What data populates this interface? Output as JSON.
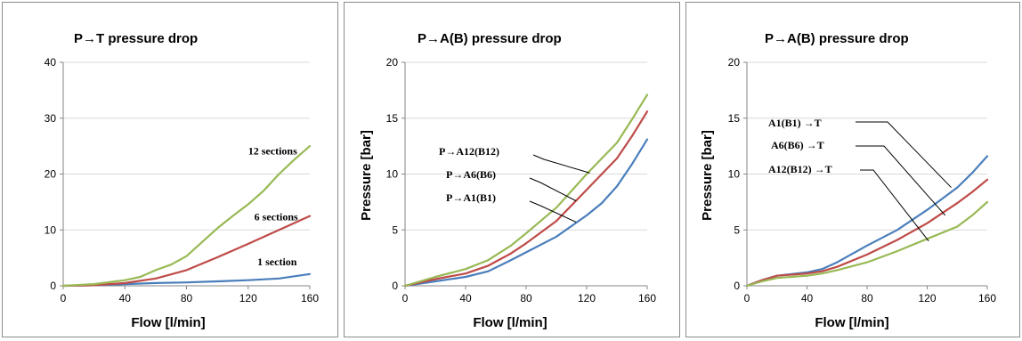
{
  "chart_data": [
    {
      "type": "line",
      "title": "P→T pressure drop",
      "xlabel": "Flow [l/min]",
      "ylabel": "",
      "xlim": [
        0,
        160
      ],
      "ylim": [
        0,
        40
      ],
      "xticks": [
        0,
        40,
        80,
        120,
        160
      ],
      "yticks": [
        0,
        10,
        20,
        30,
        40
      ],
      "grid": "horizontal",
      "series": [
        {
          "name": "1 section",
          "color": "#4a7ebb",
          "points": [
            [
              0,
              0
            ],
            [
              20,
              0.1
            ],
            [
              40,
              0.3
            ],
            [
              60,
              0.5
            ],
            [
              80,
              0.6
            ],
            [
              100,
              0.8
            ],
            [
              120,
              1.0
            ],
            [
              140,
              1.3
            ],
            [
              160,
              2.1
            ]
          ]
        },
        {
          "name": "6 sections",
          "color": "#be4b48",
          "points": [
            [
              0,
              0
            ],
            [
              20,
              0.1
            ],
            [
              40,
              0.5
            ],
            [
              60,
              1.3
            ],
            [
              80,
              2.8
            ],
            [
              100,
              5.1
            ],
            [
              120,
              7.5
            ],
            [
              140,
              10.0
            ],
            [
              160,
              12.5
            ]
          ]
        },
        {
          "name": "12 sections",
          "color": "#98b954",
          "points": [
            [
              0,
              0
            ],
            [
              20,
              0.3
            ],
            [
              40,
              1.0
            ],
            [
              50,
              1.6
            ],
            [
              60,
              2.8
            ],
            [
              70,
              3.8
            ],
            [
              80,
              5.3
            ],
            [
              90,
              7.8
            ],
            [
              100,
              10.3
            ],
            [
              110,
              12.5
            ],
            [
              120,
              14.6
            ],
            [
              130,
              17.0
            ],
            [
              140,
              20.0
            ],
            [
              150,
              22.6
            ],
            [
              160,
              25.0
            ]
          ]
        }
      ],
      "annotations": [
        {
          "text": "12 sections",
          "x": 120,
          "y": 23.5
        },
        {
          "text": "6 sections",
          "x": 124,
          "y": 11.7
        },
        {
          "text": "1 section",
          "x": 126,
          "y": 3.7
        }
      ]
    },
    {
      "type": "line",
      "title": "P→A(B) pressure drop",
      "xlabel": "Flow [l/min]",
      "ylabel": "Pressure [bar]",
      "xlim": [
        0,
        160
      ],
      "ylim": [
        0,
        20
      ],
      "xticks": [
        0,
        40,
        80,
        120,
        160
      ],
      "yticks": [
        0,
        5,
        10,
        15,
        20
      ],
      "grid": "horizontal",
      "series": [
        {
          "name": "P→A1(B1)",
          "color": "#4a7ebb",
          "points": [
            [
              0,
              0
            ],
            [
              20,
              0.4
            ],
            [
              40,
              0.8
            ],
            [
              55,
              1.3
            ],
            [
              70,
              2.3
            ],
            [
              80,
              3.0
            ],
            [
              100,
              4.4
            ],
            [
              120,
              6.3
            ],
            [
              130,
              7.4
            ],
            [
              140,
              8.9
            ],
            [
              150,
              10.9
            ],
            [
              160,
              13.1
            ]
          ]
        },
        {
          "name": "P→A6(B6)",
          "color": "#be4b48",
          "points": [
            [
              0,
              0
            ],
            [
              20,
              0.6
            ],
            [
              40,
              1.1
            ],
            [
              55,
              1.8
            ],
            [
              70,
              2.9
            ],
            [
              80,
              3.8
            ],
            [
              100,
              5.8
            ],
            [
              120,
              8.6
            ],
            [
              130,
              10.0
            ],
            [
              140,
              11.4
            ],
            [
              150,
              13.4
            ],
            [
              160,
              15.6
            ]
          ]
        },
        {
          "name": "P→A12(B12)",
          "color": "#98b954",
          "points": [
            [
              0,
              0
            ],
            [
              20,
              0.8
            ],
            [
              40,
              1.5
            ],
            [
              55,
              2.3
            ],
            [
              70,
              3.6
            ],
            [
              80,
              4.7
            ],
            [
              100,
              7.0
            ],
            [
              120,
              10.0
            ],
            [
              130,
              11.4
            ],
            [
              140,
              12.8
            ],
            [
              150,
              14.9
            ],
            [
              160,
              17.1
            ]
          ]
        }
      ],
      "annotations": [
        {
          "text": "P→A12(B12)",
          "series": 2
        },
        {
          "text": "P→A6(B6)",
          "series": 1
        },
        {
          "text": "P→A1(B1)",
          "series": 0
        }
      ]
    },
    {
      "type": "line",
      "title": "P→A(B) pressure drop",
      "xlabel": "Flow [l/min]",
      "ylabel": "Pressure [bar]",
      "xlim": [
        0,
        160
      ],
      "ylim": [
        0,
        20
      ],
      "xticks": [
        0,
        40,
        80,
        120,
        160
      ],
      "yticks": [
        0,
        5,
        10,
        15,
        20
      ],
      "grid": "horizontal",
      "series": [
        {
          "name": "A1(B1) →T",
          "color": "#4a7ebb",
          "points": [
            [
              0,
              0
            ],
            [
              10,
              0.5
            ],
            [
              20,
              0.9
            ],
            [
              40,
              1.2
            ],
            [
              50,
              1.5
            ],
            [
              60,
              2.1
            ],
            [
              80,
              3.6
            ],
            [
              100,
              5.0
            ],
            [
              120,
              6.8
            ],
            [
              140,
              8.8
            ],
            [
              150,
              10.1
            ],
            [
              160,
              11.6
            ]
          ]
        },
        {
          "name": "A6(B6) →T",
          "color": "#be4b48",
          "points": [
            [
              0,
              0
            ],
            [
              10,
              0.5
            ],
            [
              20,
              0.9
            ],
            [
              40,
              1.1
            ],
            [
              50,
              1.3
            ],
            [
              60,
              1.7
            ],
            [
              80,
              2.8
            ],
            [
              100,
              4.1
            ],
            [
              120,
              5.6
            ],
            [
              140,
              7.4
            ],
            [
              150,
              8.4
            ],
            [
              160,
              9.5
            ]
          ]
        },
        {
          "name": "A12(B12) →T",
          "color": "#98b954",
          "points": [
            [
              0,
              0
            ],
            [
              10,
              0.4
            ],
            [
              20,
              0.7
            ],
            [
              40,
              0.9
            ],
            [
              50,
              1.1
            ],
            [
              60,
              1.4
            ],
            [
              80,
              2.1
            ],
            [
              100,
              3.1
            ],
            [
              120,
              4.2
            ],
            [
              140,
              5.3
            ],
            [
              150,
              6.3
            ],
            [
              160,
              7.5
            ]
          ]
        }
      ],
      "annotations": [
        {
          "text": "A1(B1) →T",
          "series": 0
        },
        {
          "text": "A6(B6) →T",
          "series": 1
        },
        {
          "text": "A12(B12) →T",
          "series": 2
        }
      ]
    }
  ]
}
